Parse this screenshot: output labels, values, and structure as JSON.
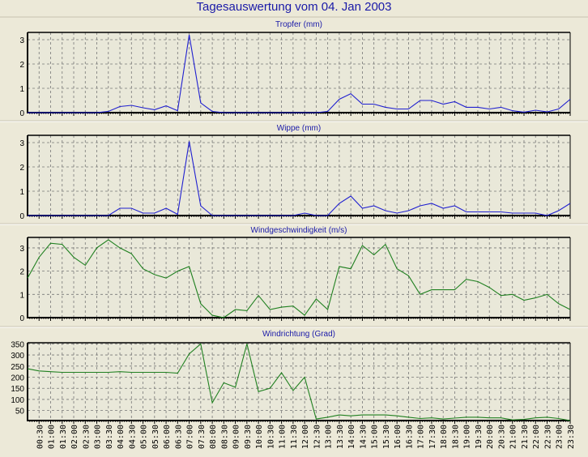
{
  "title": "Tagesauswertung vom 04. Jan 2003",
  "x_labels": [
    "00:30",
    "01:00",
    "01:30",
    "02:00",
    "02:30",
    "03:00",
    "03:30",
    "04:00",
    "04:30",
    "05:00",
    "05:30",
    "06:00",
    "06:30",
    "07:00",
    "07:30",
    "08:00",
    "08:30",
    "09:00",
    "09:30",
    "10:00",
    "10:30",
    "11:00",
    "11:30",
    "12:00",
    "12:30",
    "13:00",
    "13:30",
    "14:00",
    "14:30",
    "15:00",
    "15:30",
    "16:00",
    "16:30",
    "17:00",
    "17:30",
    "18:00",
    "18:30",
    "19:00",
    "19:30",
    "20:00",
    "20:30",
    "21:00",
    "21:30",
    "22:00",
    "22:30",
    "23:00",
    "23:30"
  ],
  "chart_data": [
    {
      "type": "line",
      "title": "Tropfer (mm)",
      "color": "#2020d0",
      "x_range": [
        "00:00",
        "23:30"
      ],
      "ylim": [
        0,
        3.3
      ],
      "yticks": [
        0,
        1,
        2,
        3
      ],
      "grid": true,
      "values": [
        0,
        0,
        0,
        0,
        0,
        0,
        0,
        0.05,
        0.25,
        0.3,
        0.2,
        0.12,
        0.28,
        0.08,
        3.2,
        0.4,
        0.05,
        0,
        0,
        0,
        0,
        0,
        0,
        0,
        0,
        0,
        0.05,
        0.55,
        0.78,
        0.35,
        0.35,
        0.22,
        0.15,
        0.15,
        0.5,
        0.5,
        0.35,
        0.45,
        0.22,
        0.22,
        0.15,
        0.22,
        0.08,
        0.02,
        0.1,
        0.03,
        0.15,
        0.55
      ]
    },
    {
      "type": "line",
      "title": "Wippe (mm)",
      "color": "#2020d0",
      "x_range": [
        "00:00",
        "23:30"
      ],
      "ylim": [
        0,
        3.3
      ],
      "yticks": [
        0,
        1,
        2,
        3
      ],
      "grid": true,
      "values": [
        0,
        0,
        0,
        0,
        0,
        0,
        0,
        0,
        0.3,
        0.3,
        0.1,
        0.1,
        0.3,
        0.05,
        3.05,
        0.4,
        0,
        0,
        0,
        0,
        0,
        0,
        0,
        0,
        0.1,
        0,
        0,
        0.5,
        0.8,
        0.3,
        0.4,
        0.2,
        0.1,
        0.2,
        0.4,
        0.5,
        0.3,
        0.4,
        0.15,
        0.15,
        0.15,
        0.15,
        0.1,
        0.1,
        0.1,
        0,
        0.2,
        0.5
      ]
    },
    {
      "type": "line",
      "title": "Windgeschwindigkeit (m/s)",
      "color": "#208020",
      "x_range": [
        "00:00",
        "23:30"
      ],
      "ylim": [
        0,
        3.45
      ],
      "yticks": [
        0,
        1,
        2,
        3
      ],
      "grid": true,
      "values": [
        1.7,
        2.6,
        3.2,
        3.15,
        2.6,
        2.25,
        3.0,
        3.35,
        3.0,
        2.75,
        2.1,
        1.85,
        1.7,
        2.0,
        2.2,
        0.6,
        0.1,
        0.0,
        0.35,
        0.3,
        0.95,
        0.35,
        0.45,
        0.5,
        0.1,
        0.8,
        0.35,
        2.2,
        2.1,
        3.1,
        2.7,
        3.15,
        2.1,
        1.8,
        1.0,
        1.2,
        1.2,
        1.2,
        1.65,
        1.55,
        1.3,
        0.95,
        1.0,
        0.75,
        0.85,
        1.0,
        0.6,
        0.35
      ]
    },
    {
      "type": "line",
      "title": "Windrichtung (Grad)",
      "color": "#208020",
      "x_range": [
        "00:00",
        "23:30"
      ],
      "ylim": [
        5,
        355
      ],
      "yticks": [
        50,
        100,
        150,
        200,
        250,
        300,
        350
      ],
      "grid": true,
      "values": [
        238,
        228,
        225,
        222,
        222,
        222,
        222,
        222,
        225,
        222,
        222,
        222,
        222,
        218,
        305,
        350,
        85,
        175,
        155,
        350,
        135,
        150,
        220,
        140,
        200,
        12,
        20,
        30,
        26,
        30,
        30,
        30,
        26,
        20,
        14,
        17,
        12,
        16,
        20,
        20,
        17,
        17,
        8,
        10,
        17,
        20,
        14,
        5
      ]
    }
  ]
}
